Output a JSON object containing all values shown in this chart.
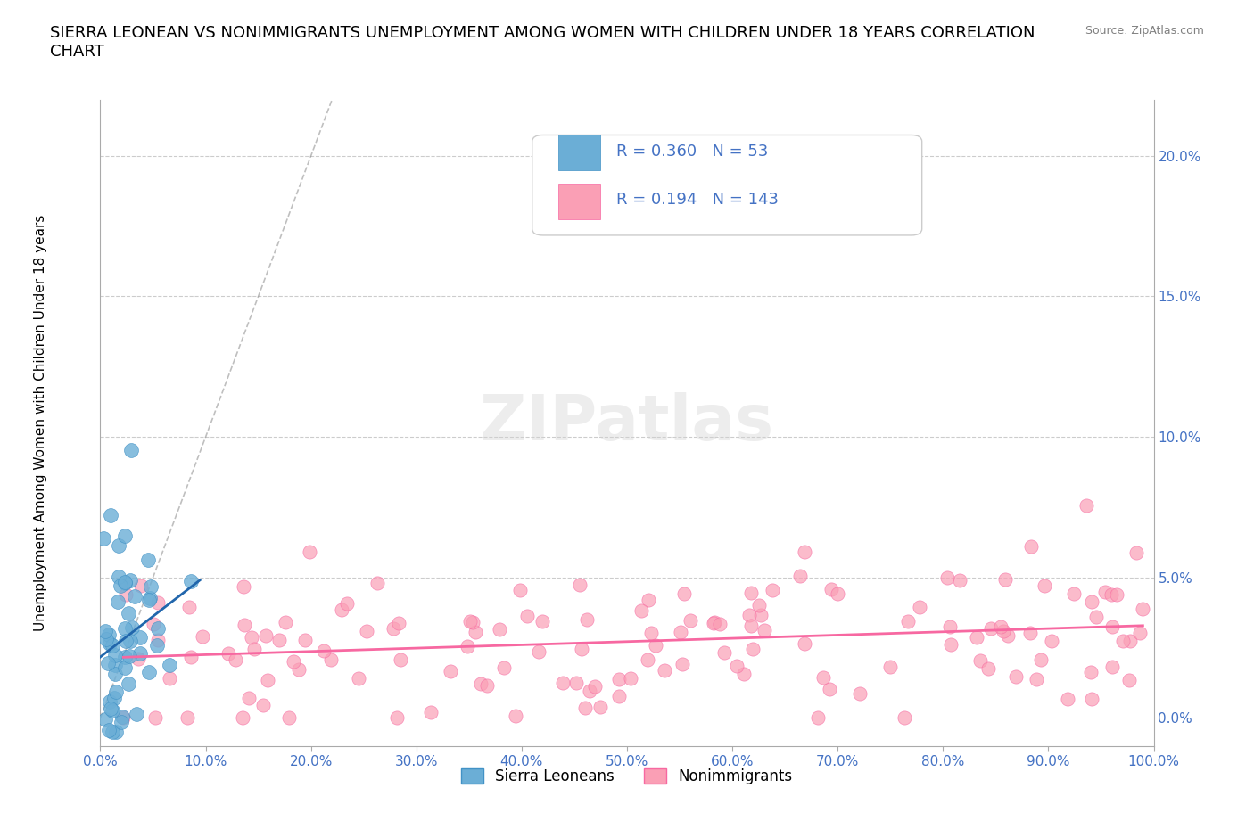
{
  "title": "SIERRA LEONEAN VS NONIMMIGRANTS UNEMPLOYMENT AMONG WOMEN WITH CHILDREN UNDER 18 YEARS CORRELATION\nCHART",
  "source": "Source: ZipAtlas.com",
  "ylabel": "Unemployment Among Women with Children Under 18 years",
  "xlabel": "",
  "xlim": [
    0,
    1.0
  ],
  "ylim": [
    -0.01,
    0.22
  ],
  "xticks": [
    0.0,
    0.1,
    0.2,
    0.3,
    0.4,
    0.5,
    0.6,
    0.7,
    0.8,
    0.9,
    1.0
  ],
  "yticks": [
    0.0,
    0.05,
    0.1,
    0.15,
    0.2
  ],
  "sl_R": 0.36,
  "sl_N": 53,
  "ni_R": 0.194,
  "ni_N": 143,
  "sl_color": "#6baed6",
  "sl_edge": "#4292c6",
  "ni_color": "#fa9fb5",
  "ni_edge": "#f768a1",
  "trend_sl_color": "#2166ac",
  "trend_ni_color": "#f768a1",
  "legend_label_sl": "Sierra Leoneans",
  "legend_label_ni": "Nonimmigrants",
  "watermark": "ZIPatlas",
  "title_fontsize": 13,
  "axis_fontsize": 11,
  "tick_fontsize": 11,
  "legend_fontsize": 13
}
